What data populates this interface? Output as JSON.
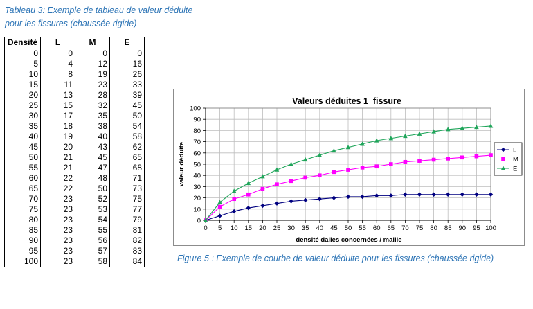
{
  "table_caption": [
    "Tableau 3: Exemple de tableau de valeur déduite",
    "pour les fissures (chaussée rigide)"
  ],
  "table": {
    "headers": [
      "Densité",
      "L",
      "M",
      "E"
    ],
    "rows": [
      [
        "0",
        "0",
        "0",
        "0"
      ],
      [
        "5",
        "4",
        "12",
        "16"
      ],
      [
        "10",
        "8",
        "19",
        "26"
      ],
      [
        "15",
        "11",
        "23",
        "33"
      ],
      [
        "20",
        "13",
        "28",
        "39"
      ],
      [
        "25",
        "15",
        "32",
        "45"
      ],
      [
        "30",
        "17",
        "35",
        "50"
      ],
      [
        "35",
        "18",
        "38",
        "54"
      ],
      [
        "40",
        "19",
        "40",
        "58"
      ],
      [
        "45",
        "20",
        "43",
        "62"
      ],
      [
        "50",
        "21",
        "45",
        "65"
      ],
      [
        "55",
        "21",
        "47",
        "68"
      ],
      [
        "60",
        "22",
        "48",
        "71"
      ],
      [
        "65",
        "22",
        "50",
        "73"
      ],
      [
        "70",
        "23",
        "52",
        "75"
      ],
      [
        "75",
        "23",
        "53",
        "77"
      ],
      [
        "80",
        "23",
        "54",
        "79"
      ],
      [
        "85",
        "23",
        "55",
        "81"
      ],
      [
        "90",
        "23",
        "56",
        "82"
      ],
      [
        "95",
        "23",
        "57",
        "83"
      ],
      [
        "100",
        "23",
        "58",
        "84"
      ]
    ]
  },
  "figure_caption": "Figure 5 : Exemple de courbe de valeur déduite pour les fissures (chaussée rigide)",
  "chart_data": {
    "type": "line",
    "title": "Valeurs déduites 1_fissure",
    "xlabel": "densité dalles concernées / maille",
    "ylabel": "valeur déduite",
    "xlim": [
      0,
      100
    ],
    "ylim": [
      0,
      100
    ],
    "x": [
      0,
      5,
      10,
      15,
      20,
      25,
      30,
      35,
      40,
      45,
      50,
      55,
      60,
      65,
      70,
      75,
      80,
      85,
      90,
      95,
      100
    ],
    "xticks": [
      "0",
      "5",
      "10",
      "15",
      "20",
      "25",
      "30",
      "35",
      "40",
      "45",
      "50",
      "55",
      "60",
      "65",
      "70",
      "75",
      "80",
      "85",
      "90",
      "95",
      "100"
    ],
    "yticks": [
      "0",
      "10",
      "20",
      "30",
      "40",
      "50",
      "60",
      "70",
      "80",
      "90",
      "100"
    ],
    "grid": true,
    "legend_position": "right",
    "series": [
      {
        "name": "L",
        "color": "#000080",
        "marker": "diamond",
        "values": [
          0,
          4,
          8,
          11,
          13,
          15,
          17,
          18,
          19,
          20,
          21,
          21,
          22,
          22,
          23,
          23,
          23,
          23,
          23,
          23,
          23
        ]
      },
      {
        "name": "M",
        "color": "#ff00ff",
        "marker": "square",
        "values": [
          0,
          12,
          19,
          23,
          28,
          32,
          35,
          38,
          40,
          43,
          45,
          47,
          48,
          50,
          52,
          53,
          54,
          55,
          56,
          57,
          58
        ]
      },
      {
        "name": "E",
        "color": "#1fa55a",
        "marker": "triangle",
        "values": [
          0,
          16,
          26,
          33,
          39,
          45,
          50,
          54,
          58,
          62,
          65,
          68,
          71,
          73,
          75,
          77,
          79,
          81,
          82,
          83,
          84
        ]
      }
    ]
  }
}
